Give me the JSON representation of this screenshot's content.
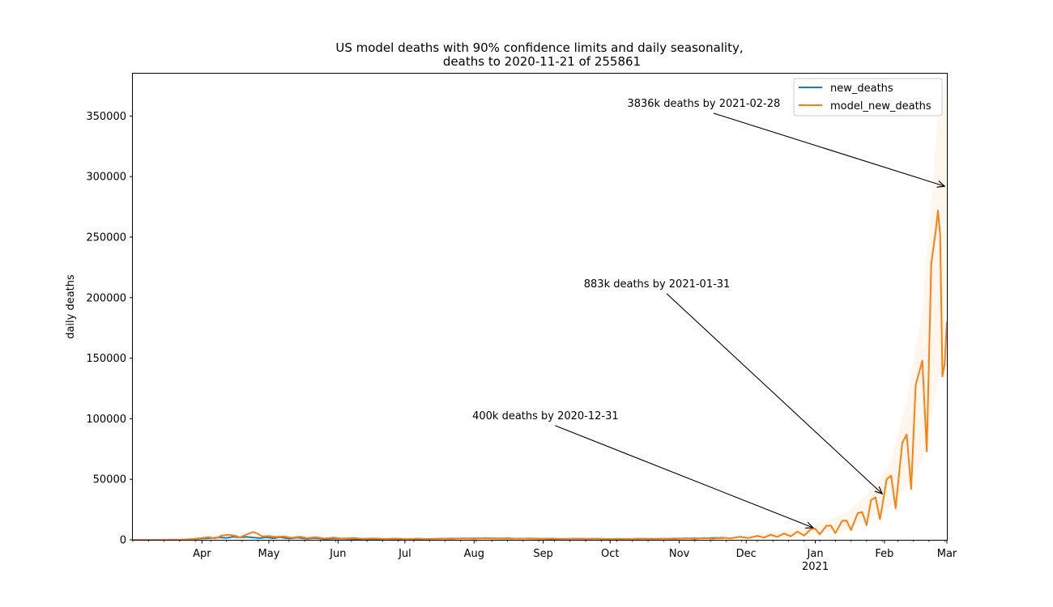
{
  "chart_data": {
    "type": "line",
    "title": "US model deaths with 90% confidence limits and daily seasonality,",
    "subtitle": "deaths to 2020-11-21 of 255861",
    "ylabel": "daily deaths",
    "xlabel": "",
    "x_range": [
      "2020-03-01",
      "2021-03-01"
    ],
    "ylim": [
      0,
      385000
    ],
    "y_ticks": [
      0,
      50000,
      100000,
      150000,
      200000,
      250000,
      300000,
      350000
    ],
    "x_ticks": [
      {
        "date": "2020-04-01",
        "label": "Apr"
      },
      {
        "date": "2020-05-01",
        "label": "May"
      },
      {
        "date": "2020-06-01",
        "label": "Jun"
      },
      {
        "date": "2020-07-01",
        "label": "Jul"
      },
      {
        "date": "2020-08-01",
        "label": "Aug"
      },
      {
        "date": "2020-09-01",
        "label": "Sep"
      },
      {
        "date": "2020-10-01",
        "label": "Oct"
      },
      {
        "date": "2020-11-01",
        "label": "Nov"
      },
      {
        "date": "2020-12-01",
        "label": "Dec"
      },
      {
        "date": "2021-01-01",
        "label": "Jan",
        "sublabel": "2021"
      },
      {
        "date": "2021-02-01",
        "label": "Feb"
      },
      {
        "date": "2021-03-01",
        "label": "Mar"
      }
    ],
    "legend": {
      "position": "top-right"
    },
    "series": [
      {
        "name": "new_deaths",
        "color": "#1f77b4",
        "points": [
          [
            "2020-03-01",
            0
          ],
          [
            "2020-03-10",
            10
          ],
          [
            "2020-03-17",
            50
          ],
          [
            "2020-03-24",
            200
          ],
          [
            "2020-03-28",
            600
          ],
          [
            "2020-04-01",
            1100
          ],
          [
            "2020-04-05",
            1400
          ],
          [
            "2020-04-09",
            2000
          ],
          [
            "2020-04-12",
            1600
          ],
          [
            "2020-04-15",
            2500
          ],
          [
            "2020-04-18",
            2000
          ],
          [
            "2020-04-21",
            2400
          ],
          [
            "2020-04-24",
            1900
          ],
          [
            "2020-04-27",
            1400
          ],
          [
            "2020-04-30",
            2100
          ],
          [
            "2020-05-03",
            1300
          ],
          [
            "2020-05-06",
            2200
          ],
          [
            "2020-05-10",
            1000
          ],
          [
            "2020-05-14",
            1800
          ],
          [
            "2020-05-18",
            900
          ],
          [
            "2020-05-22",
            1400
          ],
          [
            "2020-05-26",
            600
          ],
          [
            "2020-05-30",
            1000
          ],
          [
            "2020-06-05",
            800
          ],
          [
            "2020-06-15",
            500
          ],
          [
            "2020-06-25",
            700
          ],
          [
            "2020-07-05",
            300
          ],
          [
            "2020-07-15",
            900
          ],
          [
            "2020-07-25",
            1100
          ],
          [
            "2020-08-05",
            1300
          ],
          [
            "2020-08-15",
            1100
          ],
          [
            "2020-08-25",
            1000
          ],
          [
            "2020-09-05",
            700
          ],
          [
            "2020-09-15",
            900
          ],
          [
            "2020-09-25",
            800
          ],
          [
            "2020-10-05",
            500
          ],
          [
            "2020-10-15",
            900
          ],
          [
            "2020-10-25",
            800
          ],
          [
            "2020-11-05",
            1200
          ],
          [
            "2020-11-12",
            1300
          ],
          [
            "2020-11-17",
            1600
          ],
          [
            "2020-11-21",
            1500
          ]
        ]
      },
      {
        "name": "model_new_deaths",
        "color": "#ff7f0e",
        "points": [
          [
            "2020-03-01",
            0
          ],
          [
            "2020-03-10",
            20
          ],
          [
            "2020-03-17",
            80
          ],
          [
            "2020-03-24",
            300
          ],
          [
            "2020-03-28",
            700
          ],
          [
            "2020-04-01",
            1600
          ],
          [
            "2020-04-04",
            2200
          ],
          [
            "2020-04-07",
            1200
          ],
          [
            "2020-04-10",
            3600
          ],
          [
            "2020-04-13",
            4200
          ],
          [
            "2020-04-16",
            3300
          ],
          [
            "2020-04-18",
            2000
          ],
          [
            "2020-04-21",
            4500
          ],
          [
            "2020-04-24",
            6500
          ],
          [
            "2020-04-26",
            5000
          ],
          [
            "2020-04-28",
            2800
          ],
          [
            "2020-05-01",
            3200
          ],
          [
            "2020-05-04",
            2400
          ],
          [
            "2020-05-08",
            2800
          ],
          [
            "2020-05-11",
            1700
          ],
          [
            "2020-05-15",
            2600
          ],
          [
            "2020-05-18",
            1500
          ],
          [
            "2020-05-22",
            2200
          ],
          [
            "2020-05-26",
            1200
          ],
          [
            "2020-05-30",
            1900
          ],
          [
            "2020-06-03",
            1100
          ],
          [
            "2020-06-08",
            1600
          ],
          [
            "2020-06-12",
            900
          ],
          [
            "2020-06-17",
            1300
          ],
          [
            "2020-06-22",
            700
          ],
          [
            "2020-06-27",
            1100
          ],
          [
            "2020-07-02",
            600
          ],
          [
            "2020-07-07",
            1000
          ],
          [
            "2020-07-12",
            500
          ],
          [
            "2020-07-17",
            1000
          ],
          [
            "2020-07-22",
            700
          ],
          [
            "2020-07-27",
            1300
          ],
          [
            "2020-08-01",
            900
          ],
          [
            "2020-08-06",
            1500
          ],
          [
            "2020-08-11",
            1000
          ],
          [
            "2020-08-16",
            1400
          ],
          [
            "2020-08-21",
            900
          ],
          [
            "2020-08-26",
            1300
          ],
          [
            "2020-08-31",
            800
          ],
          [
            "2020-09-05",
            1100
          ],
          [
            "2020-09-10",
            500
          ],
          [
            "2020-09-15",
            1000
          ],
          [
            "2020-09-20",
            600
          ],
          [
            "2020-09-25",
            1000
          ],
          [
            "2020-09-30",
            500
          ],
          [
            "2020-10-05",
            900
          ],
          [
            "2020-10-10",
            600
          ],
          [
            "2020-10-15",
            1000
          ],
          [
            "2020-10-20",
            500
          ],
          [
            "2020-10-25",
            1000
          ],
          [
            "2020-10-30",
            600
          ],
          [
            "2020-11-04",
            1300
          ],
          [
            "2020-11-08",
            700
          ],
          [
            "2020-11-12",
            1600
          ],
          [
            "2020-11-16",
            900
          ],
          [
            "2020-11-20",
            1900
          ],
          [
            "2020-11-24",
            1200
          ],
          [
            "2020-11-28",
            2500
          ],
          [
            "2020-12-02",
            1500
          ],
          [
            "2020-12-06",
            3300
          ],
          [
            "2020-12-09",
            1800
          ],
          [
            "2020-12-12",
            4200
          ],
          [
            "2020-12-15",
            2400
          ],
          [
            "2020-12-18",
            5200
          ],
          [
            "2020-12-21",
            2900
          ],
          [
            "2020-12-24",
            6800
          ],
          [
            "2020-12-27",
            3500
          ],
          [
            "2020-12-30",
            8800
          ],
          [
            "2021-01-01",
            9200
          ],
          [
            "2021-01-03",
            4500
          ],
          [
            "2021-01-06",
            11500
          ],
          [
            "2021-01-08",
            11800
          ],
          [
            "2021-01-10",
            5500
          ],
          [
            "2021-01-13",
            15500
          ],
          [
            "2021-01-15",
            16000
          ],
          [
            "2021-01-17",
            8000
          ],
          [
            "2021-01-20",
            22000
          ],
          [
            "2021-01-22",
            23000
          ],
          [
            "2021-01-24",
            12000
          ],
          [
            "2021-01-26",
            33000
          ],
          [
            "2021-01-28",
            35000
          ],
          [
            "2021-01-30",
            17000
          ],
          [
            "2021-02-02",
            50000
          ],
          [
            "2021-02-04",
            53000
          ],
          [
            "2021-02-06",
            26000
          ],
          [
            "2021-02-09",
            80000
          ],
          [
            "2021-02-11",
            87000
          ],
          [
            "2021-02-13",
            42000
          ],
          [
            "2021-02-15",
            128000
          ],
          [
            "2021-02-18",
            148000
          ],
          [
            "2021-02-20",
            73000
          ],
          [
            "2021-02-22",
            228000
          ],
          [
            "2021-02-24",
            255000
          ],
          [
            "2021-02-25",
            272000
          ],
          [
            "2021-02-26",
            252000
          ],
          [
            "2021-02-27",
            135000
          ],
          [
            "2021-02-28",
            145000
          ],
          [
            "2021-03-01",
            180000
          ]
        ]
      }
    ],
    "confidence_band": {
      "color": "#ff7f0e",
      "points": [
        [
          "2020-11-21",
          1000,
          2200
        ],
        [
          "2020-12-05",
          1800,
          4200
        ],
        [
          "2020-12-20",
          3000,
          8500
        ],
        [
          "2021-01-01",
          5000,
          13000
        ],
        [
          "2021-01-15",
          9000,
          22000
        ],
        [
          "2021-01-28",
          20000,
          44000
        ],
        [
          "2021-02-04",
          28000,
          65000
        ],
        [
          "2021-02-11",
          45000,
          115000
        ],
        [
          "2021-02-18",
          65000,
          190000
        ],
        [
          "2021-02-25",
          130000,
          350000
        ],
        [
          "2021-03-01",
          150000,
          385000
        ]
      ]
    },
    "annotations": [
      {
        "text": "400k deaths by 2020-12-31",
        "text_at": [
          "2020-09-02",
          103000
        ],
        "arrow_to": [
          "2020-12-31",
          10000
        ]
      },
      {
        "text": "883k deaths by 2021-01-31",
        "text_at": [
          "2020-10-22",
          212000
        ],
        "arrow_to": [
          "2021-01-31",
          38000
        ]
      },
      {
        "text": "3836k deaths by 2021-02-28",
        "text_at": [
          "2020-11-12",
          361000
        ],
        "arrow_to": [
          "2021-02-28",
          292000
        ]
      }
    ]
  }
}
